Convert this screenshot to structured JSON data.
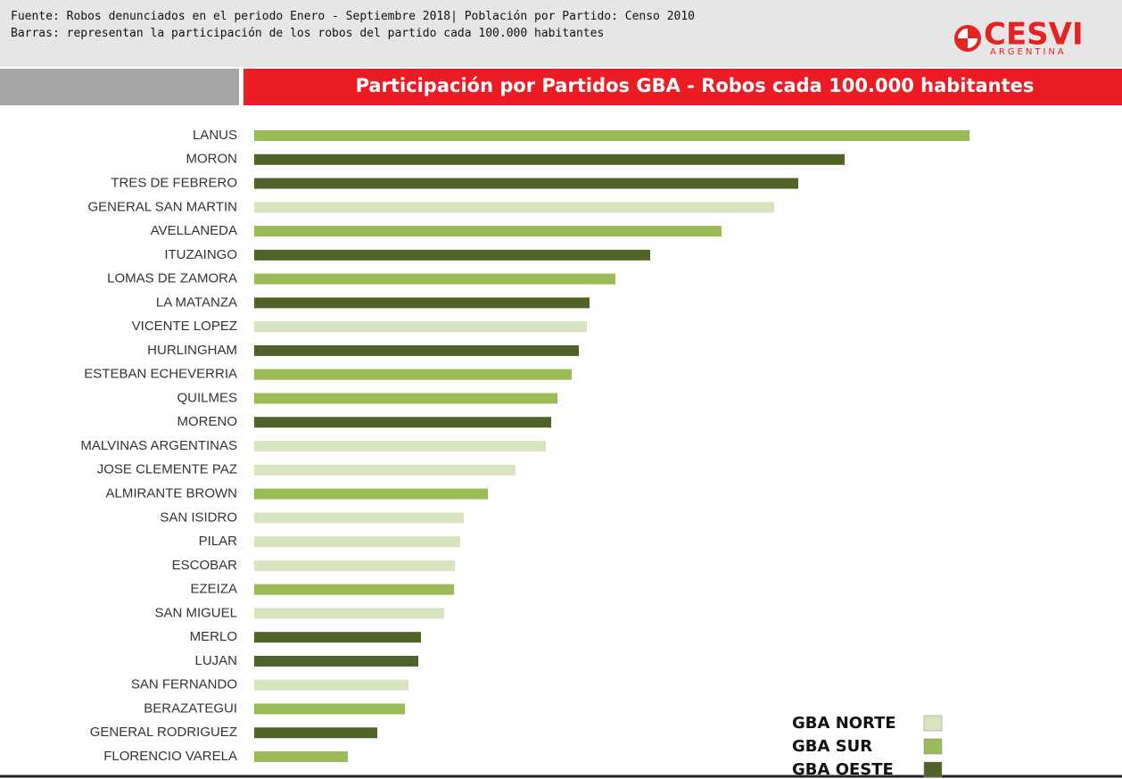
{
  "header": {
    "line1": "Fuente: Robos denunciados en el periodo Enero - Septiembre 2018| Población por Partido: Censo 2010",
    "line2": "Barras: representan la participación de los robos del partido cada 100.000 habitantes",
    "logo": "CESVI",
    "logo_sub": "ARGENTINA"
  },
  "chart_data": {
    "type": "hbar",
    "title": "Participación por Partidos GBA - Robos cada 100.000 habitantes",
    "categories": [
      "LANUS",
      "MORON",
      "TRES DE FEBRERO",
      "GENERAL SAN MARTIN",
      "AVELLANEDA",
      "ITUZAINGO",
      "LOMAS DE ZAMORA",
      "LA MATANZA",
      "VICENTE LOPEZ",
      "HURLINGHAM",
      "ESTEBAN ECHEVERRIA",
      "QUILMES",
      "MORENO",
      "MALVINAS ARGENTINAS",
      "JOSE CLEMENTE PAZ",
      "ALMIRANTE BROWN",
      "SAN ISIDRO",
      "PILAR",
      "ESCOBAR",
      "EZEIZA",
      "SAN MIGUEL",
      "MERLO",
      "LUJAN",
      "SAN FERNANDO",
      "BERAZATEGUI",
      "GENERAL RODRIGUEZ",
      "FLORENCIO VARELA"
    ],
    "xlim": [
      0,
      900
    ],
    "series": [
      {
        "name": "GBA NORTE",
        "color": "#d7e4bd",
        "values": [
          null,
          null,
          null,
          583,
          null,
          null,
          null,
          null,
          373,
          null,
          null,
          null,
          null,
          327,
          293,
          null,
          235,
          231,
          225,
          null,
          213,
          null,
          null,
          173,
          null,
          null,
          null
        ]
      },
      {
        "name": "GBA SUR",
        "color": "#9bbb59",
        "values": [
          802,
          null,
          null,
          null,
          524,
          null,
          405,
          null,
          null,
          null,
          356,
          340,
          null,
          null,
          null,
          262,
          null,
          null,
          null,
          224,
          null,
          null,
          null,
          null,
          169,
          null,
          105
        ]
      },
      {
        "name": "GBA OESTE",
        "color": "#4f6228",
        "values": [
          null,
          662,
          610,
          null,
          null,
          444,
          null,
          376,
          null,
          364,
          null,
          null,
          333,
          null,
          null,
          null,
          null,
          null,
          null,
          null,
          null,
          187,
          184,
          null,
          null,
          138,
          null
        ]
      }
    ]
  }
}
